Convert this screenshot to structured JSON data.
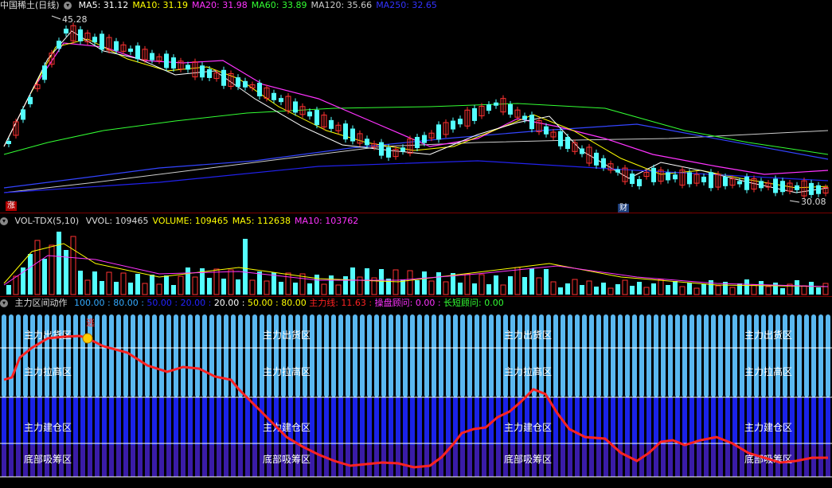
{
  "price_panel": {
    "title": "中国稀土(日线)",
    "indicators": [
      {
        "label": "MA5: 31.12",
        "color": "#ffffff"
      },
      {
        "label": "MA10: 31.19",
        "color": "#ffff00"
      },
      {
        "label": "MA20: 31.98",
        "color": "#ff33ff"
      },
      {
        "label": "MA60: 33.89",
        "color": "#33ff33"
      },
      {
        "label": "MA120: 35.66",
        "color": "#cccccc"
      },
      {
        "label": "MA250: 32.65",
        "color": "#3333ff"
      }
    ],
    "high_marker": "45.28",
    "low_marker": "30.08",
    "badge_rise": "涨",
    "badge_fin": "财"
  },
  "volume_panel": {
    "title": "VOL-TDX(5,10)",
    "indicators": [
      {
        "label": "VVOL: 109465",
        "color": "#dddddd"
      },
      {
        "label": "VOLUME: 109465",
        "color": "#ffff00"
      },
      {
        "label": "MA5: 112638",
        "color": "#ffff00"
      },
      {
        "label": "MA10: 103762",
        "color": "#ff33ff"
      }
    ]
  },
  "force_panel": {
    "title": "主力区间动作",
    "indicators": [
      {
        "label": "100.00",
        "color": "#33aaff"
      },
      {
        "label": "80.00",
        "color": "#33aaff"
      },
      {
        "label": "50.00",
        "color": "#2222ff"
      },
      {
        "label": "20.00",
        "color": "#2222ff"
      },
      {
        "label": "20.00",
        "color": "#ffffff"
      },
      {
        "label": "50.00",
        "color": "#ffff00"
      },
      {
        "label": "80.00",
        "color": "#ffff00"
      },
      {
        "label": "主力线: 11.63",
        "color": "#ff2222"
      },
      {
        "label": "操盘顾问: 0.00",
        "color": "#ff33ff"
      },
      {
        "label": "长短顾问: 0.00",
        "color": "#33ff33"
      }
    ],
    "zone_labels": [
      "主力出货区",
      "主力拉高区",
      "主力建仓区",
      "底部吸筹区"
    ],
    "signal": "逃"
  },
  "colors": {
    "up": "#ff3232",
    "down": "#54ffff",
    "divider": "#7a0000"
  }
}
